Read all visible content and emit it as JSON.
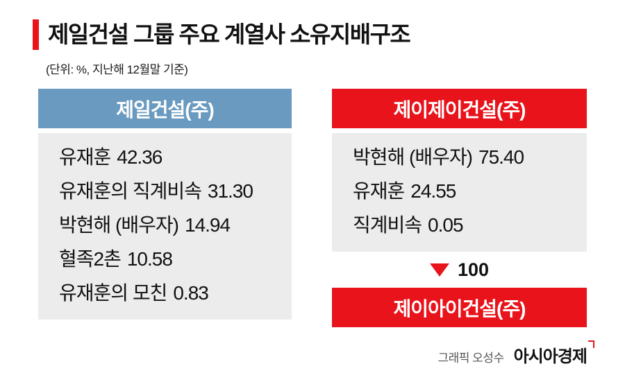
{
  "title": {
    "text": "제일건설 그룹 주요 계열사 소유지배구조",
    "unit_note": "(단위: %, 지난해 12월말 기준)"
  },
  "panels": {
    "jeil": {
      "header": "제일건설(주)",
      "rows": [
        {
          "label": "유재훈",
          "value": "42.36"
        },
        {
          "label": "유재훈의 직계비속",
          "value": "31.30"
        },
        {
          "label": "박현해 (배우자)",
          "value": "14.94"
        },
        {
          "label": "혈족2촌",
          "value": "10.58"
        },
        {
          "label": "유재훈의 모친",
          "value": "0.83"
        }
      ]
    },
    "jj": {
      "header": "제이제이건설(주)",
      "rows": [
        {
          "label": "박현해 (배우자)",
          "value": "75.40"
        },
        {
          "label": "유재훈",
          "value": "24.55"
        },
        {
          "label": "직계비속",
          "value": "0.05"
        }
      ],
      "ownership_arrow": {
        "icon": "down-triangle-icon",
        "value": "100"
      },
      "subsidiary_header": "제이아이건설(주)"
    }
  },
  "footer": {
    "credit": "그래픽 오성수",
    "logo": "아시아경제"
  },
  "colors": {
    "accent_red": "#e8131b",
    "header_blue": "#6a9abf",
    "panel_gray": "#ececec"
  }
}
